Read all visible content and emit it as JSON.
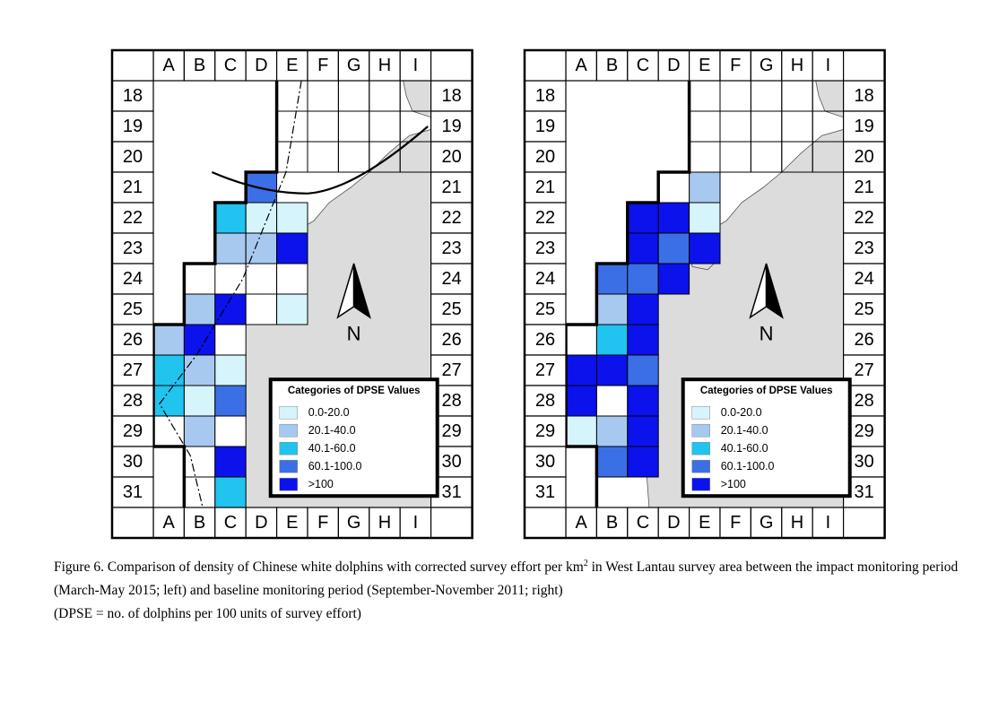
{
  "columns": [
    "A",
    "B",
    "C",
    "D",
    "E",
    "F",
    "G",
    "H",
    "I"
  ],
  "rows": [
    "18",
    "19",
    "20",
    "21",
    "22",
    "23",
    "24",
    "25",
    "26",
    "27",
    "28",
    "29",
    "30",
    "31"
  ],
  "legend": {
    "title": "Categories of DPSE Values",
    "items": [
      {
        "label": "0.0-20.0",
        "color": "#d6f4fb"
      },
      {
        "label": "20.1-40.0",
        "color": "#a7c9f0"
      },
      {
        "label": "40.1-60.0",
        "color": "#21c3ef"
      },
      {
        "label": "60.1-100.0",
        "color": "#3b6fe6"
      },
      {
        "label": ">100",
        "color": "#0b12ec"
      }
    ]
  },
  "north_label": "N",
  "land_color": "#dcdcdc",
  "maps": [
    {
      "id": "impact",
      "cells": [
        {
          "col": "D",
          "row": "21",
          "cat": 4
        },
        {
          "col": "C",
          "row": "22",
          "cat": 3
        },
        {
          "col": "D",
          "row": "22",
          "cat": 1
        },
        {
          "col": "E",
          "row": "22",
          "cat": 1
        },
        {
          "col": "C",
          "row": "23",
          "cat": 2
        },
        {
          "col": "D",
          "row": "23",
          "cat": 2
        },
        {
          "col": "E",
          "row": "23",
          "cat": 5
        },
        {
          "col": "C",
          "row": "24",
          "cat": 0
        },
        {
          "col": "D",
          "row": "24",
          "cat": 0
        },
        {
          "col": "E",
          "row": "24",
          "cat": 0
        },
        {
          "col": "B",
          "row": "25",
          "cat": 2
        },
        {
          "col": "C",
          "row": "25",
          "cat": 5
        },
        {
          "col": "D",
          "row": "25",
          "cat": 0
        },
        {
          "col": "E",
          "row": "25",
          "cat": 1
        },
        {
          "col": "A",
          "row": "26",
          "cat": 2
        },
        {
          "col": "B",
          "row": "26",
          "cat": 5
        },
        {
          "col": "C",
          "row": "26",
          "cat": 0
        },
        {
          "col": "A",
          "row": "27",
          "cat": 3
        },
        {
          "col": "B",
          "row": "27",
          "cat": 2
        },
        {
          "col": "C",
          "row": "27",
          "cat": 1
        },
        {
          "col": "A",
          "row": "28",
          "cat": 3
        },
        {
          "col": "B",
          "row": "28",
          "cat": 1
        },
        {
          "col": "C",
          "row": "28",
          "cat": 4
        },
        {
          "col": "A",
          "row": "29",
          "cat": 0
        },
        {
          "col": "B",
          "row": "29",
          "cat": 2
        },
        {
          "col": "C",
          "row": "29",
          "cat": 0
        },
        {
          "col": "B",
          "row": "30",
          "cat": 0
        },
        {
          "col": "C",
          "row": "30",
          "cat": 5
        },
        {
          "col": "B",
          "row": "31",
          "cat": 0
        },
        {
          "col": "C",
          "row": "31",
          "cat": 3
        }
      ]
    },
    {
      "id": "baseline",
      "cells": [
        {
          "col": "E",
          "row": "21",
          "cat": 2
        },
        {
          "col": "D",
          "row": "21",
          "cat": 0
        },
        {
          "col": "C",
          "row": "22",
          "cat": 5
        },
        {
          "col": "D",
          "row": "22",
          "cat": 5
        },
        {
          "col": "E",
          "row": "22",
          "cat": 1
        },
        {
          "col": "C",
          "row": "23",
          "cat": 5
        },
        {
          "col": "D",
          "row": "23",
          "cat": 4
        },
        {
          "col": "E",
          "row": "23",
          "cat": 5
        },
        {
          "col": "B",
          "row": "24",
          "cat": 4
        },
        {
          "col": "C",
          "row": "24",
          "cat": 4
        },
        {
          "col": "D",
          "row": "24",
          "cat": 5
        },
        {
          "col": "B",
          "row": "25",
          "cat": 2
        },
        {
          "col": "C",
          "row": "25",
          "cat": 5
        },
        {
          "col": "A",
          "row": "26",
          "cat": 0
        },
        {
          "col": "B",
          "row": "26",
          "cat": 3
        },
        {
          "col": "C",
          "row": "26",
          "cat": 5
        },
        {
          "col": "A",
          "row": "27",
          "cat": 5
        },
        {
          "col": "B",
          "row": "27",
          "cat": 5
        },
        {
          "col": "C",
          "row": "27",
          "cat": 4
        },
        {
          "col": "A",
          "row": "28",
          "cat": 5
        },
        {
          "col": "B",
          "row": "28",
          "cat": 0
        },
        {
          "col": "C",
          "row": "28",
          "cat": 5
        },
        {
          "col": "A",
          "row": "29",
          "cat": 1
        },
        {
          "col": "B",
          "row": "29",
          "cat": 2
        },
        {
          "col": "C",
          "row": "29",
          "cat": 5
        },
        {
          "col": "B",
          "row": "30",
          "cat": 4
        },
        {
          "col": "C",
          "row": "30",
          "cat": 5
        }
      ]
    }
  ],
  "caption": {
    "line1_before": "Figure 6.  Comparison of density of Chinese white dolphins with corrected survey effort per km",
    "line1_sup": "2",
    "line1_after": " in West Lantau survey area between the impact monitoring period (March-May 2015; left) and baseline monitoring period (September-November 2011; right)",
    "line2": "(DPSE = no. of dolphins per 100 units of survey effort)"
  }
}
